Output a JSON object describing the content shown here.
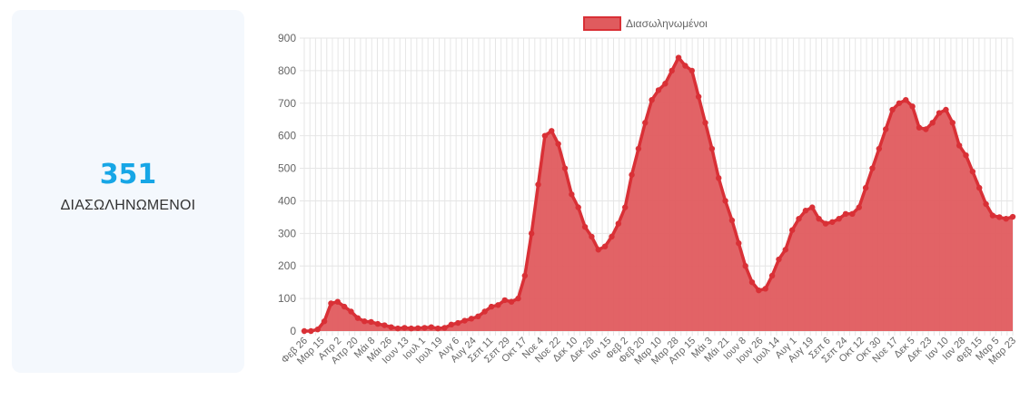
{
  "stat": {
    "value": "351",
    "label": "ΔΙΑΣΩΛΗΝΩΜΕΝΟΙ"
  },
  "colors": {
    "accent": "#17a6e6",
    "series_fill": "#e05b5e",
    "series_line": "#d93036",
    "grid": "#e6e6e6"
  },
  "chart_data": {
    "type": "area",
    "title": "",
    "xlabel": "",
    "ylabel": "",
    "legend_position": "top",
    "grid": true,
    "ylim": [
      0,
      900
    ],
    "yticks": [
      0,
      100,
      200,
      300,
      400,
      500,
      600,
      700,
      800,
      900
    ],
    "x_tick_labels": [
      "Φεβ 26",
      "Μαρ 15",
      "Απρ 2",
      "Απρ 20",
      "Μάι 8",
      "Μάι 26",
      "Ιουν 13",
      "Ιουλ 1",
      "Ιουλ 19",
      "Αυγ 6",
      "Αυγ 24",
      "Σεπ 11",
      "Σεπ 29",
      "Οκτ 17",
      "Νοε 4",
      "Νοε 22",
      "Δεκ 10",
      "Δεκ 28",
      "Ιαν 15",
      "Φεβ 2",
      "Φεβ 20",
      "Μαρ 10",
      "Μαρ 28",
      "Απρ 15",
      "Μάι 3",
      "Μάι 21",
      "Ιουν 8",
      "Ιουν 26",
      "Ιουλ 14",
      "Αυγ 1",
      "Αυγ 19",
      "Σεπ 6",
      "Σεπ 24",
      "Οκτ 12",
      "Οκτ 30",
      "Νοε 17",
      "Δεκ 5",
      "Δεκ 23",
      "Ιαν 10",
      "Ιαν 28",
      "Φεβ 15",
      "Μαρ 5",
      "Μαρ 23"
    ],
    "series": [
      {
        "name": "Διασωληνωμένοι",
        "values": [
          0,
          0,
          5,
          30,
          85,
          90,
          75,
          60,
          40,
          30,
          28,
          22,
          18,
          12,
          8,
          10,
          8,
          9,
          10,
          12,
          8,
          10,
          20,
          25,
          32,
          38,
          45,
          60,
          75,
          80,
          95,
          90,
          100,
          170,
          300,
          450,
          600,
          615,
          575,
          500,
          420,
          380,
          320,
          290,
          250,
          260,
          290,
          330,
          380,
          480,
          560,
          640,
          710,
          740,
          760,
          800,
          840,
          815,
          800,
          720,
          640,
          560,
          470,
          400,
          340,
          270,
          200,
          150,
          125,
          130,
          170,
          220,
          250,
          310,
          345,
          370,
          380,
          345,
          330,
          335,
          345,
          360,
          360,
          380,
          440,
          500,
          560,
          620,
          680,
          700,
          710,
          690,
          625,
          620,
          640,
          670,
          680,
          640,
          570,
          540,
          490,
          440,
          390,
          355,
          350,
          345,
          351
        ]
      }
    ]
  }
}
